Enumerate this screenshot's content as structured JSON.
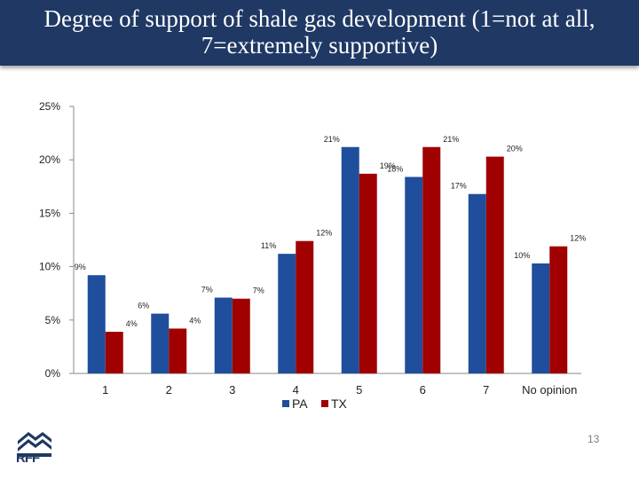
{
  "slide": {
    "title": "Degree of support of shale gas development (1=not at all, 7=extremely supportive)",
    "page_number": "13",
    "logo_text": "RFF"
  },
  "colors": {
    "title_bar": "#1f3864",
    "PA": "#1f4e9c",
    "TX": "#a00000"
  },
  "chart_data": {
    "type": "bar",
    "title": "",
    "xlabel": "",
    "ylabel": "",
    "categories": [
      "1",
      "2",
      "3",
      "4",
      "5",
      "6",
      "7",
      "No opinion"
    ],
    "series": [
      {
        "name": "PA",
        "values": [
          9.2,
          5.6,
          7.1,
          11.2,
          21.2,
          18.4,
          16.8,
          10.3
        ],
        "labels": [
          "9%",
          "6%",
          "7%",
          "11%",
          "21%",
          "18%",
          "17%",
          "10%"
        ]
      },
      {
        "name": "TX",
        "values": [
          3.9,
          4.2,
          7.0,
          12.4,
          18.7,
          21.2,
          20.3,
          11.9
        ],
        "labels": [
          "4%",
          "4%",
          "7%",
          "12%",
          "19%",
          "21%",
          "20%",
          "12%"
        ]
      }
    ],
    "ylim": [
      0,
      25
    ],
    "yticks": [
      "0%",
      "5%",
      "10%",
      "15%",
      "20%",
      "25%"
    ],
    "grid": false,
    "legend": "bottom"
  }
}
